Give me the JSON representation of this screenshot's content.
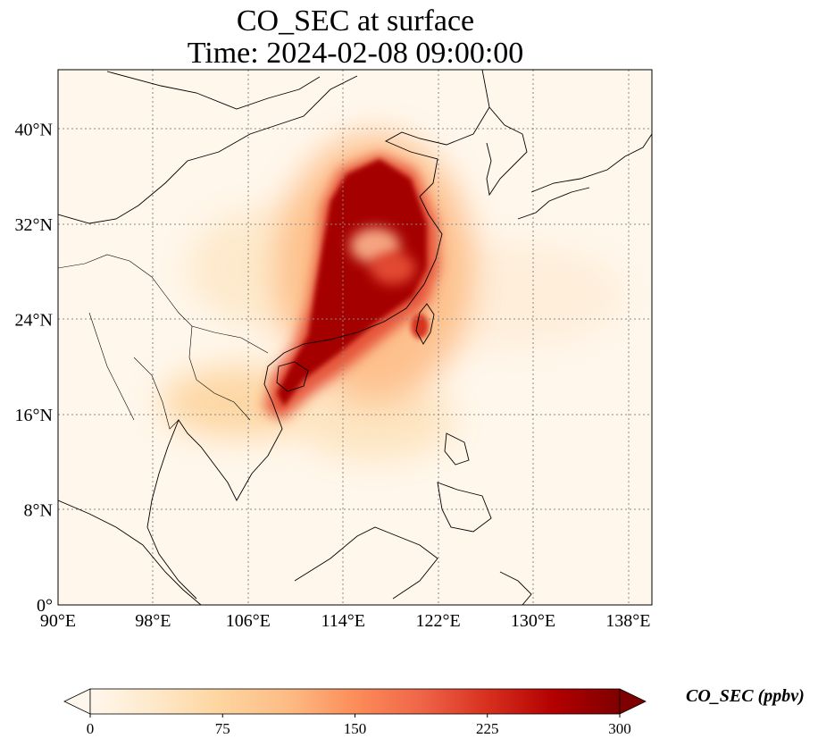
{
  "title": {
    "line1": "CO_SEC at surface",
    "line2": "Time: 2024-02-08 09:00:00"
  },
  "map": {
    "type": "map",
    "extent": {
      "lon_min": 90,
      "lon_max": 140,
      "lat_min": 0,
      "lat_max": 45
    },
    "lon_ticks": [
      {
        "value": 90,
        "label": "90°E"
      },
      {
        "value": 98,
        "label": "98°E"
      },
      {
        "value": 106,
        "label": "106°E"
      },
      {
        "value": 114,
        "label": "114°E"
      },
      {
        "value": 122,
        "label": "122°E"
      },
      {
        "value": 130,
        "label": "130°E"
      },
      {
        "value": 138,
        "label": "138°E"
      }
    ],
    "lat_ticks": [
      {
        "value": 0,
        "label": "0°"
      },
      {
        "value": 8,
        "label": "8°N"
      },
      {
        "value": 16,
        "label": "16°N"
      },
      {
        "value": 24,
        "label": "24°N"
      },
      {
        "value": 32,
        "label": "32°N"
      },
      {
        "value": 40,
        "label": "40°N"
      }
    ],
    "gridlines": "dotted",
    "colormap": "OrRd",
    "colors": {
      "low": "#fff7ec",
      "mid": "#fdbb84",
      "high": "#7f0000",
      "coastline": "#000000",
      "grid": "#808080"
    }
  },
  "colorbar": {
    "label": "CO_SEC (ppbv)",
    "min": 0,
    "max": 300,
    "extend": "both",
    "ticks": [
      {
        "value": 0,
        "label": "0"
      },
      {
        "value": 75,
        "label": "75"
      },
      {
        "value": 150,
        "label": "150"
      },
      {
        "value": 225,
        "label": "225"
      },
      {
        "value": 300,
        "label": "300"
      }
    ]
  }
}
